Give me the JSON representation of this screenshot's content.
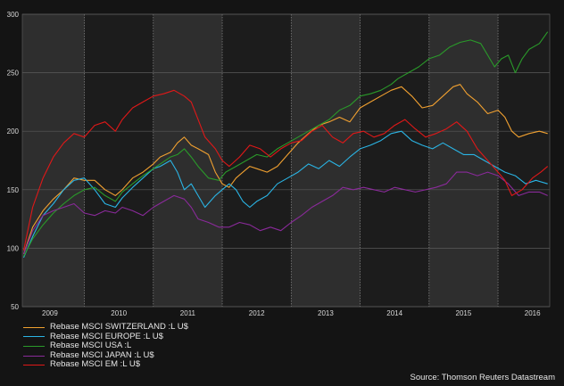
{
  "chart_data": {
    "type": "line",
    "title": "",
    "xlabel": "",
    "ylabel": "",
    "x_ticks": [
      "2009",
      "2010",
      "2011",
      "2012",
      "2013",
      "2014",
      "2015",
      "2016"
    ],
    "xlim": [
      2008.6,
      2016.25
    ],
    "ylim": [
      50,
      300
    ],
    "y_ticks": [
      50,
      100,
      150,
      200,
      250,
      300
    ],
    "grid": true,
    "legend_position": "bottom-left",
    "shaded_years": [
      2009,
      2011,
      2013,
      2015
    ],
    "series": [
      {
        "name": "Rebase MSCI SWITZERLAND :L U$",
        "color": "#f0a030",
        "points": [
          [
            2008.62,
            95
          ],
          [
            2008.75,
            118
          ],
          [
            2008.9,
            132
          ],
          [
            2009.05,
            142
          ],
          [
            2009.2,
            150
          ],
          [
            2009.35,
            160
          ],
          [
            2009.5,
            158
          ],
          [
            2009.65,
            158
          ],
          [
            2009.8,
            150
          ],
          [
            2009.95,
            145
          ],
          [
            2010.05,
            150
          ],
          [
            2010.2,
            160
          ],
          [
            2010.35,
            165
          ],
          [
            2010.5,
            172
          ],
          [
            2010.6,
            178
          ],
          [
            2010.75,
            182
          ],
          [
            2010.85,
            190
          ],
          [
            2010.95,
            195
          ],
          [
            2011.05,
            188
          ],
          [
            2011.15,
            185
          ],
          [
            2011.3,
            180
          ],
          [
            2011.4,
            165
          ],
          [
            2011.5,
            155
          ],
          [
            2011.6,
            152
          ],
          [
            2011.7,
            160
          ],
          [
            2011.8,
            165
          ],
          [
            2011.9,
            170
          ],
          [
            2012.0,
            168
          ],
          [
            2012.15,
            165
          ],
          [
            2012.3,
            170
          ],
          [
            2012.45,
            180
          ],
          [
            2012.6,
            190
          ],
          [
            2012.75,
            198
          ],
          [
            2012.9,
            205
          ],
          [
            2013.05,
            208
          ],
          [
            2013.2,
            212
          ],
          [
            2013.35,
            208
          ],
          [
            2013.5,
            220
          ],
          [
            2013.65,
            225
          ],
          [
            2013.8,
            230
          ],
          [
            2013.95,
            235
          ],
          [
            2014.1,
            238
          ],
          [
            2014.25,
            230
          ],
          [
            2014.4,
            220
          ],
          [
            2014.55,
            222
          ],
          [
            2014.7,
            230
          ],
          [
            2014.85,
            238
          ],
          [
            2014.95,
            240
          ],
          [
            2015.05,
            232
          ],
          [
            2015.2,
            225
          ],
          [
            2015.35,
            215
          ],
          [
            2015.5,
            218
          ],
          [
            2015.6,
            212
          ],
          [
            2015.7,
            200
          ],
          [
            2015.8,
            195
          ],
          [
            2015.95,
            198
          ],
          [
            2016.1,
            200
          ],
          [
            2016.22,
            198
          ]
        ]
      },
      {
        "name": "Rebase MSCI EUROPE :L U$",
        "color": "#2ab4e4",
        "points": [
          [
            2008.62,
            92
          ],
          [
            2008.75,
            110
          ],
          [
            2008.9,
            128
          ],
          [
            2009.05,
            138
          ],
          [
            2009.2,
            150
          ],
          [
            2009.35,
            158
          ],
          [
            2009.5,
            160
          ],
          [
            2009.65,
            150
          ],
          [
            2009.8,
            138
          ],
          [
            2009.95,
            135
          ],
          [
            2010.05,
            143
          ],
          [
            2010.2,
            152
          ],
          [
            2010.35,
            160
          ],
          [
            2010.5,
            168
          ],
          [
            2010.6,
            170
          ],
          [
            2010.75,
            175
          ],
          [
            2010.85,
            165
          ],
          [
            2010.95,
            150
          ],
          [
            2011.05,
            155
          ],
          [
            2011.15,
            145
          ],
          [
            2011.25,
            135
          ],
          [
            2011.4,
            145
          ],
          [
            2011.5,
            150
          ],
          [
            2011.6,
            155
          ],
          [
            2011.7,
            150
          ],
          [
            2011.8,
            140
          ],
          [
            2011.9,
            135
          ],
          [
            2012.0,
            140
          ],
          [
            2012.15,
            145
          ],
          [
            2012.3,
            155
          ],
          [
            2012.45,
            160
          ],
          [
            2012.6,
            165
          ],
          [
            2012.75,
            172
          ],
          [
            2012.9,
            168
          ],
          [
            2013.05,
            175
          ],
          [
            2013.2,
            170
          ],
          [
            2013.35,
            178
          ],
          [
            2013.5,
            185
          ],
          [
            2013.65,
            188
          ],
          [
            2013.8,
            192
          ],
          [
            2013.95,
            198
          ],
          [
            2014.1,
            200
          ],
          [
            2014.25,
            192
          ],
          [
            2014.4,
            188
          ],
          [
            2014.55,
            185
          ],
          [
            2014.7,
            190
          ],
          [
            2014.85,
            185
          ],
          [
            2015.0,
            180
          ],
          [
            2015.15,
            180
          ],
          [
            2015.3,
            175
          ],
          [
            2015.45,
            170
          ],
          [
            2015.6,
            165
          ],
          [
            2015.75,
            162
          ],
          [
            2015.9,
            155
          ],
          [
            2016.05,
            158
          ],
          [
            2016.22,
            155
          ]
        ]
      },
      {
        "name": "Rebase MSCI USA :L",
        "color": "#2a9a2a",
        "points": [
          [
            2008.62,
            93
          ],
          [
            2008.75,
            108
          ],
          [
            2008.9,
            120
          ],
          [
            2009.05,
            130
          ],
          [
            2009.2,
            138
          ],
          [
            2009.35,
            145
          ],
          [
            2009.5,
            150
          ],
          [
            2009.65,
            152
          ],
          [
            2009.8,
            145
          ],
          [
            2009.95,
            140
          ],
          [
            2010.05,
            148
          ],
          [
            2010.2,
            155
          ],
          [
            2010.35,
            162
          ],
          [
            2010.5,
            168
          ],
          [
            2010.6,
            172
          ],
          [
            2010.75,
            178
          ],
          [
            2010.85,
            180
          ],
          [
            2010.95,
            185
          ],
          [
            2011.05,
            178
          ],
          [
            2011.15,
            170
          ],
          [
            2011.3,
            160
          ],
          [
            2011.45,
            158
          ],
          [
            2011.55,
            165
          ],
          [
            2011.7,
            170
          ],
          [
            2011.85,
            175
          ],
          [
            2012.0,
            180
          ],
          [
            2012.15,
            178
          ],
          [
            2012.3,
            185
          ],
          [
            2012.45,
            190
          ],
          [
            2012.6,
            195
          ],
          [
            2012.75,
            200
          ],
          [
            2012.9,
            205
          ],
          [
            2013.05,
            210
          ],
          [
            2013.2,
            218
          ],
          [
            2013.35,
            222
          ],
          [
            2013.5,
            230
          ],
          [
            2013.65,
            232
          ],
          [
            2013.8,
            235
          ],
          [
            2013.95,
            240
          ],
          [
            2014.05,
            245
          ],
          [
            2014.2,
            250
          ],
          [
            2014.35,
            255
          ],
          [
            2014.5,
            262
          ],
          [
            2014.65,
            265
          ],
          [
            2014.8,
            272
          ],
          [
            2014.95,
            276
          ],
          [
            2015.1,
            278
          ],
          [
            2015.25,
            275
          ],
          [
            2015.35,
            265
          ],
          [
            2015.45,
            255
          ],
          [
            2015.55,
            262
          ],
          [
            2015.65,
            265
          ],
          [
            2015.75,
            250
          ],
          [
            2015.85,
            262
          ],
          [
            2015.95,
            270
          ],
          [
            2016.1,
            275
          ],
          [
            2016.22,
            285
          ]
        ]
      },
      {
        "name": "Rebase MSCI JAPAN :L U$",
        "color": "#8a2a9a",
        "points": [
          [
            2008.62,
            95
          ],
          [
            2008.75,
            115
          ],
          [
            2008.9,
            128
          ],
          [
            2009.05,
            132
          ],
          [
            2009.2,
            135
          ],
          [
            2009.35,
            138
          ],
          [
            2009.5,
            130
          ],
          [
            2009.65,
            128
          ],
          [
            2009.8,
            132
          ],
          [
            2009.95,
            130
          ],
          [
            2010.05,
            135
          ],
          [
            2010.2,
            132
          ],
          [
            2010.35,
            128
          ],
          [
            2010.5,
            135
          ],
          [
            2010.65,
            140
          ],
          [
            2010.8,
            145
          ],
          [
            2010.95,
            142
          ],
          [
            2011.05,
            135
          ],
          [
            2011.15,
            125
          ],
          [
            2011.3,
            122
          ],
          [
            2011.45,
            118
          ],
          [
            2011.6,
            118
          ],
          [
            2011.75,
            122
          ],
          [
            2011.9,
            120
          ],
          [
            2012.05,
            115
          ],
          [
            2012.2,
            118
          ],
          [
            2012.35,
            115
          ],
          [
            2012.5,
            122
          ],
          [
            2012.65,
            128
          ],
          [
            2012.8,
            135
          ],
          [
            2012.95,
            140
          ],
          [
            2013.1,
            145
          ],
          [
            2013.25,
            152
          ],
          [
            2013.4,
            150
          ],
          [
            2013.55,
            152
          ],
          [
            2013.7,
            150
          ],
          [
            2013.85,
            148
          ],
          [
            2014.0,
            152
          ],
          [
            2014.15,
            150
          ],
          [
            2014.3,
            148
          ],
          [
            2014.45,
            150
          ],
          [
            2014.6,
            152
          ],
          [
            2014.75,
            155
          ],
          [
            2014.9,
            165
          ],
          [
            2015.05,
            165
          ],
          [
            2015.2,
            162
          ],
          [
            2015.35,
            165
          ],
          [
            2015.5,
            162
          ],
          [
            2015.65,
            155
          ],
          [
            2015.8,
            145
          ],
          [
            2015.95,
            148
          ],
          [
            2016.1,
            148
          ],
          [
            2016.22,
            145
          ]
        ]
      },
      {
        "name": "Rebase MSCI EM :L U$",
        "color": "#e01818",
        "points": [
          [
            2008.62,
            98
          ],
          [
            2008.75,
            135
          ],
          [
            2008.9,
            160
          ],
          [
            2009.05,
            178
          ],
          [
            2009.2,
            190
          ],
          [
            2009.35,
            198
          ],
          [
            2009.5,
            195
          ],
          [
            2009.65,
            205
          ],
          [
            2009.8,
            208
          ],
          [
            2009.95,
            200
          ],
          [
            2010.05,
            210
          ],
          [
            2010.2,
            220
          ],
          [
            2010.35,
            225
          ],
          [
            2010.5,
            230
          ],
          [
            2010.65,
            232
          ],
          [
            2010.8,
            235
          ],
          [
            2010.95,
            230
          ],
          [
            2011.05,
            225
          ],
          [
            2011.15,
            210
          ],
          [
            2011.25,
            195
          ],
          [
            2011.4,
            185
          ],
          [
            2011.5,
            175
          ],
          [
            2011.6,
            170
          ],
          [
            2011.75,
            178
          ],
          [
            2011.9,
            188
          ],
          [
            2012.05,
            185
          ],
          [
            2012.2,
            178
          ],
          [
            2012.35,
            185
          ],
          [
            2012.5,
            190
          ],
          [
            2012.65,
            192
          ],
          [
            2012.8,
            200
          ],
          [
            2012.95,
            205
          ],
          [
            2013.1,
            195
          ],
          [
            2013.25,
            190
          ],
          [
            2013.4,
            198
          ],
          [
            2013.55,
            200
          ],
          [
            2013.7,
            195
          ],
          [
            2013.85,
            198
          ],
          [
            2014.0,
            205
          ],
          [
            2014.15,
            210
          ],
          [
            2014.3,
            202
          ],
          [
            2014.45,
            195
          ],
          [
            2014.6,
            198
          ],
          [
            2014.75,
            202
          ],
          [
            2014.9,
            208
          ],
          [
            2015.05,
            200
          ],
          [
            2015.2,
            185
          ],
          [
            2015.35,
            175
          ],
          [
            2015.5,
            165
          ],
          [
            2015.6,
            158
          ],
          [
            2015.7,
            145
          ],
          [
            2015.85,
            150
          ],
          [
            2016.0,
            160
          ],
          [
            2016.12,
            165
          ],
          [
            2016.22,
            170
          ]
        ]
      }
    ]
  },
  "source": "Source: Thomson Reuters Datastream"
}
